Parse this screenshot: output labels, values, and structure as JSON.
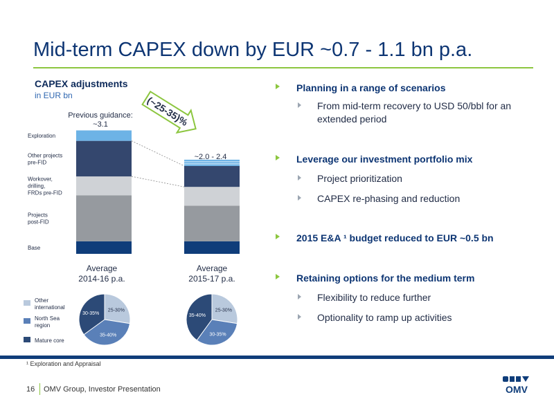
{
  "title": "Mid-term CAPEX down by EUR ~0.7 - 1.1 bn p.a.",
  "capex_title": "CAPEX adjustments",
  "capex_unit": "in EUR bn",
  "colors": {
    "navy": "#0f3d7a",
    "blue_top": "#6db3e6",
    "gray_light": "#cfd2d6",
    "gray_mid": "#969a9f",
    "brand_green": "#8cc63f",
    "pie_other_international": "#b9c9dd",
    "pie_north_sea": "#5a80b8",
    "pie_mature_core": "#2c4a77"
  },
  "chart_data": [
    {
      "type": "bar",
      "stacked": true,
      "categories": [
        "Average\n2014-16 p.a.",
        "Average\n2015-17 p.a."
      ],
      "series": [
        {
          "name": "Base",
          "values": [
            0.3,
            0.3
          ]
        },
        {
          "name": "Projects post-FID",
          "values": [
            1.1,
            0.85
          ]
        },
        {
          "name": "Workover, drilling, FRDs pre-FID",
          "values": [
            0.45,
            0.45
          ]
        },
        {
          "name": "Other projects pre-FID",
          "values": [
            0.85,
            0.5
          ]
        },
        {
          "name": "Exploration",
          "values": [
            0.25,
            0.15
          ]
        }
      ],
      "bar_annotations": [
        "Previous guidance:\n~3.1",
        "~2.0 - 2.4"
      ],
      "arrow_label": "(~25-35)%",
      "grid": false
    },
    {
      "type": "pie",
      "title": "Average\n2014-16 p.a.",
      "legend": [
        "Other international",
        "North Sea region",
        "Mature core"
      ],
      "slices": [
        {
          "name": "Other international",
          "label": "25-30%",
          "value": 27.5
        },
        {
          "name": "North Sea region",
          "label": "35-40%",
          "value": 37.5
        },
        {
          "name": "Mature core",
          "label": "30-35%",
          "value": 35
        }
      ]
    },
    {
      "type": "pie",
      "title": "Average\n2015-17 p.a.",
      "legend": [
        "Other international",
        "North Sea region",
        "Mature core"
      ],
      "slices": [
        {
          "name": "Other international",
          "label": "25-30%",
          "value": 27.5
        },
        {
          "name": "North Sea region",
          "label": "30-35%",
          "value": 32.5
        },
        {
          "name": "Mature core",
          "label": "35-40%",
          "value": 40
        }
      ]
    }
  ],
  "legend": {
    "other_international": "Other\ninternational",
    "north_sea": "North Sea\nregion",
    "mature_core": "Mature core"
  },
  "bullets": [
    {
      "text": "Planning in a range of scenarios",
      "sub": [
        "From mid-term recovery to USD 50/bbl for an extended period"
      ]
    },
    {
      "text": "Leverage our investment portfolio mix",
      "sub": [
        "Project prioritization",
        "CAPEX re-phasing and reduction"
      ]
    },
    {
      "text": "2015 E&A ¹ budget reduced to EUR ~0.5 bn",
      "sub": []
    },
    {
      "text": "Retaining options for the medium term",
      "sub": [
        "Flexibility to reduce further",
        "Optionality to ramp up activities"
      ]
    }
  ],
  "footnote": "¹ Exploration and Appraisal",
  "footer": {
    "page": "16",
    "text": "OMV Group, Investor Presentation"
  },
  "logo": {
    "text": "OMV"
  }
}
